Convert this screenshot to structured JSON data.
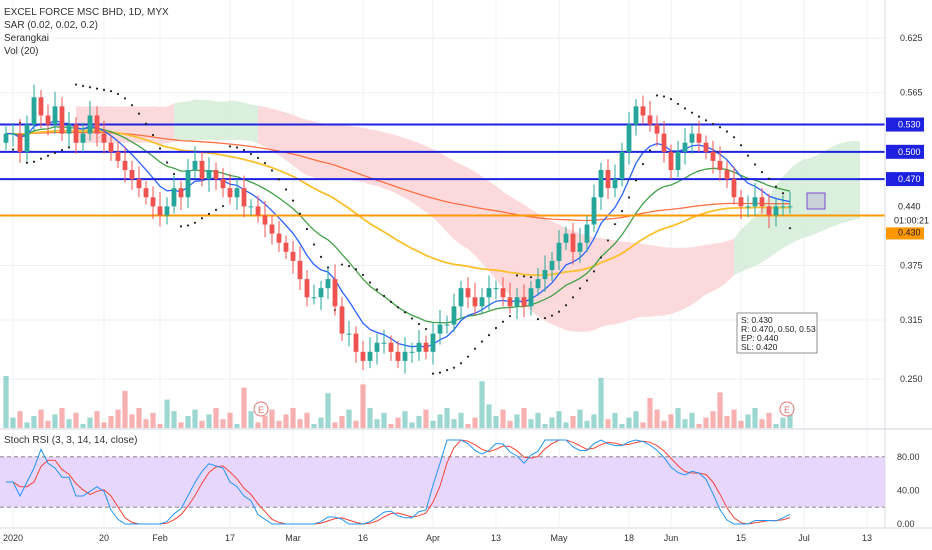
{
  "legend": {
    "symbol": "EXCEL FORCE MSC BHD, 1D, MYX",
    "sar": "SAR (0.02, 0.02, 0.2)",
    "ichimoku": "Serangkai",
    "volume": "Vol (20)"
  },
  "rsi_legend": "Stoch RSI (3, 3, 14, 14, close)",
  "trade_box": {
    "s": "S: 0.430",
    "r": "R: 0.470,  0.50,  0.53",
    "ep": "EP: 0.440",
    "sl": "SL: 0.420"
  },
  "earnings_marker": "E",
  "colors": {
    "up": "#26a69a",
    "down": "#ef5350",
    "blue_line": "#1e22e0",
    "orange_line": "#ff9800",
    "ema_fast": "#2962ff",
    "ema_mid": "#43a047",
    "ema_slow": "#fbc02d",
    "ema_long": "#ff7043",
    "cloud_red": "#fbd4d6",
    "cloud_green": "#d4ecd6",
    "stoch_k": "#2196f3",
    "stoch_d": "#f44336",
    "stoch_band": "#e2cdfd"
  },
  "chart_data": [
    {
      "type": "candlestick",
      "ylim": [
        0.205,
        0.645
      ],
      "price_ticks": [
        "0.625",
        "0.565",
        "0.375",
        "0.315",
        "0.250"
      ],
      "price_tick_values": [
        0.625,
        0.565,
        0.375,
        0.315,
        0.25
      ],
      "x_ticks": [
        "2020",
        "20",
        "Feb",
        "17",
        "Mar",
        "16",
        "Apr",
        "13",
        "May",
        "18",
        "Jun",
        "15",
        "Jul",
        "13"
      ],
      "x_tick_index": [
        1,
        14,
        22,
        32,
        41,
        51,
        61,
        70,
        79,
        89,
        95,
        105,
        114,
        123
      ],
      "horizontal_levels": [
        {
          "value": 0.53,
          "label": "0.530",
          "color": "#1e22e0"
        },
        {
          "value": 0.5,
          "label": "0.500",
          "color": "#1e22e0"
        },
        {
          "value": 0.47,
          "label": "0.470",
          "color": "#1e22e0"
        },
        {
          "value": 0.43,
          "label": "0.430",
          "color": "#ff9800"
        }
      ],
      "last_price_label": "0.440",
      "countdown_label": "01:00:21",
      "close": [
        0.52,
        0.52,
        0.5,
        0.53,
        0.56,
        0.54,
        0.53,
        0.55,
        0.52,
        0.53,
        0.51,
        0.52,
        0.54,
        0.52,
        0.51,
        0.5,
        0.49,
        0.48,
        0.47,
        0.46,
        0.45,
        0.44,
        0.43,
        0.44,
        0.46,
        0.45,
        0.48,
        0.49,
        0.47,
        0.48,
        0.47,
        0.46,
        0.45,
        0.46,
        0.44,
        0.44,
        0.43,
        0.42,
        0.41,
        0.4,
        0.39,
        0.38,
        0.36,
        0.34,
        0.34,
        0.35,
        0.36,
        0.33,
        0.3,
        0.3,
        0.28,
        0.27,
        0.28,
        0.29,
        0.29,
        0.28,
        0.27,
        0.28,
        0.28,
        0.29,
        0.28,
        0.3,
        0.31,
        0.31,
        0.33,
        0.35,
        0.34,
        0.33,
        0.34,
        0.35,
        0.35,
        0.34,
        0.33,
        0.34,
        0.33,
        0.35,
        0.36,
        0.37,
        0.38,
        0.4,
        0.41,
        0.39,
        0.4,
        0.42,
        0.45,
        0.48,
        0.46,
        0.47,
        0.5,
        0.53,
        0.55,
        0.54,
        0.53,
        0.52,
        0.5,
        0.48,
        0.5,
        0.51,
        0.52,
        0.51,
        0.5,
        0.49,
        0.48,
        0.47,
        0.45,
        0.44,
        0.44,
        0.45,
        0.44,
        0.43,
        0.44,
        0.44,
        0.44
      ],
      "stoch_rsi": {
        "bands": [
          80,
          20
        ],
        "ticks": [
          "80.00",
          "40.00",
          "0.00"
        ],
        "tick_values": [
          80,
          40,
          0
        ]
      }
    }
  ]
}
